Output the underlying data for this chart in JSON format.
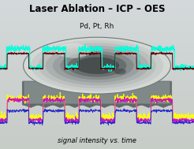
{
  "title": "Laser Ablation – ICP – OES",
  "subtitle": "Pd, Pt, Rh",
  "xlabel": "signal intensity vs. time",
  "bg_color_top": "#c8d0c8",
  "bg_color_bottom": "#b8c0b0",
  "title_color": "#000000",
  "subtitle_color": "#111111",
  "xlabel_color": "#000000",
  "line_cyan_color": "#00ffdd",
  "line_darkred_color": "#5a0000",
  "line_yellow_color": "#ffff00",
  "line_magenta_color": "#cc00cc",
  "line_blue_color": "#2222cc",
  "disk_top_color": "#c0c8c0",
  "disk_mid_color": "#909898",
  "disk_edge_color": "#707878",
  "disk_side_color": "#808888",
  "disk_shadow_color": "#606868",
  "n_pulses": 5,
  "noise_amp": 0.03
}
